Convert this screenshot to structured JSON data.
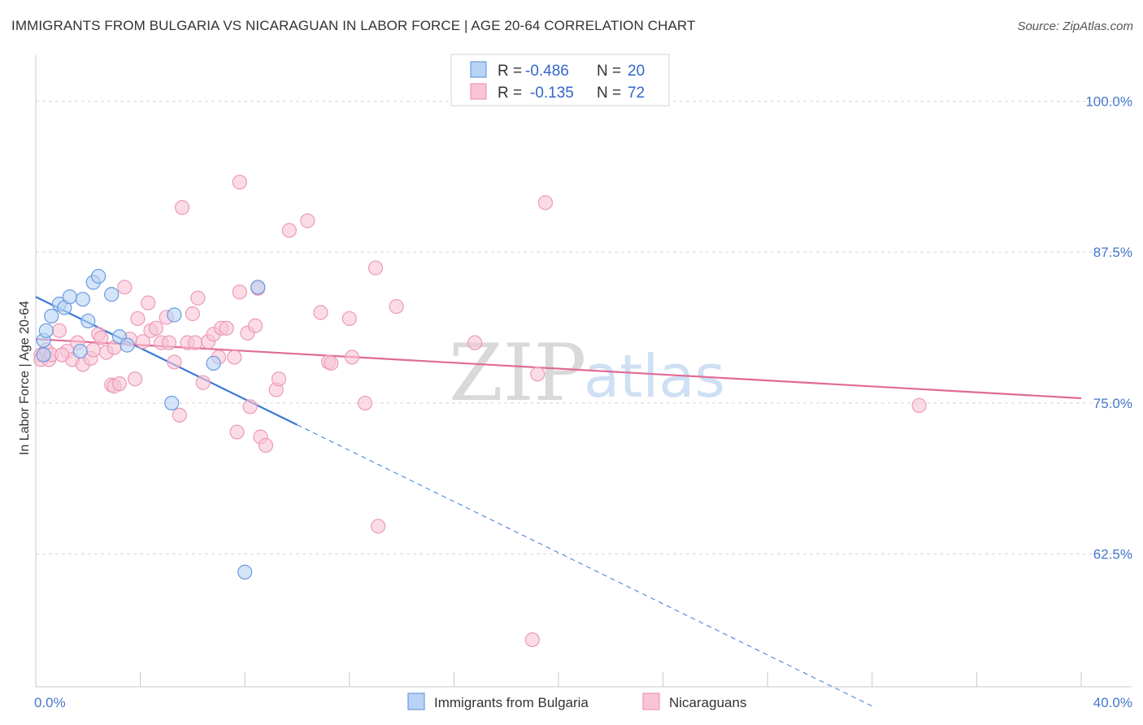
{
  "title": "IMMIGRANTS FROM BULGARIA VS NICARAGUAN IN LABOR FORCE | AGE 20-64 CORRELATION CHART",
  "source": "Source: ZipAtlas.com",
  "watermark": {
    "zip": "ZIP",
    "atlas": "atlas"
  },
  "colors": {
    "blue": "#3a78d8",
    "blue_fill": "#b8d3f5",
    "blue_stroke": "#6a9be0",
    "pink": "#e06a96",
    "pink_fill": "#f8c4d6",
    "pink_stroke": "#ec9ab7",
    "grid": "#d5d5d5",
    "axis_text": "#4477cc"
  },
  "legend_top": {
    "rows": [
      {
        "r_label": "R =",
        "r_value": "-0.486",
        "n_label": "N =",
        "n_value": "20"
      },
      {
        "r_label": "R =",
        "r_value": "-0.135",
        "n_label": "N =",
        "n_value": "72"
      }
    ]
  },
  "chart_data": {
    "type": "scatter",
    "title": "IMMIGRANTS FROM BULGARIA VS NICARAGUAN IN LABOR FORCE | AGE 20-64 CORRELATION CHART",
    "xlabel": "",
    "ylabel": "In Labor Force | Age 20-64",
    "xlim": [
      0,
      40
    ],
    "ylim": [
      51.5,
      103
    ],
    "x_tick_labels": [
      "0.0%",
      "40.0%"
    ],
    "y_ticks": [
      100.0,
      87.5,
      75.0,
      62.5
    ],
    "y_tick_labels": [
      "100.0%",
      "87.5%",
      "75.0%",
      "62.5%"
    ],
    "legend_bottom": [
      "Immigrants from Bulgaria",
      "Nicaraguans"
    ],
    "series": [
      {
        "name": "Immigrants from Bulgaria",
        "r": -0.486,
        "n": 20,
        "trend": {
          "x0": 0,
          "y0": 83.8,
          "x1": 10,
          "y1": 73.2,
          "dash_to_x": 32,
          "dash_to_y": 49.9
        },
        "points": [
          [
            0.3,
            80.2
          ],
          [
            0.3,
            79.0
          ],
          [
            0.4,
            81.0
          ],
          [
            0.6,
            82.2
          ],
          [
            0.9,
            83.2
          ],
          [
            1.1,
            82.9
          ],
          [
            1.3,
            83.8
          ],
          [
            1.8,
            83.6
          ],
          [
            2.0,
            81.8
          ],
          [
            1.7,
            79.3
          ],
          [
            2.2,
            85.0
          ],
          [
            2.4,
            85.5
          ],
          [
            2.9,
            84.0
          ],
          [
            3.2,
            80.5
          ],
          [
            3.5,
            79.8
          ],
          [
            5.2,
            75.0
          ],
          [
            5.3,
            82.3
          ],
          [
            6.8,
            78.3
          ],
          [
            8.5,
            84.6
          ],
          [
            8.0,
            61.0
          ]
        ]
      },
      {
        "name": "Nicaraguans",
        "r": -0.135,
        "n": 72,
        "trend": {
          "x0": 0,
          "y0": 80.3,
          "x1": 40,
          "y1": 75.4
        },
        "points": [
          [
            0.2,
            79.0
          ],
          [
            0.2,
            78.6
          ],
          [
            0.4,
            79.4
          ],
          [
            0.5,
            78.6
          ],
          [
            0.6,
            79.0
          ],
          [
            0.9,
            81.0
          ],
          [
            1.2,
            79.3
          ],
          [
            1.4,
            78.6
          ],
          [
            1.6,
            80.0
          ],
          [
            1.8,
            78.2
          ],
          [
            2.1,
            78.7
          ],
          [
            2.2,
            79.4
          ],
          [
            2.4,
            80.7
          ],
          [
            2.5,
            80.4
          ],
          [
            2.7,
            79.2
          ],
          [
            2.9,
            76.5
          ],
          [
            3.0,
            76.4
          ],
          [
            3.2,
            76.6
          ],
          [
            3.4,
            84.6
          ],
          [
            3.6,
            80.3
          ],
          [
            3.8,
            77.0
          ],
          [
            3.9,
            82.0
          ],
          [
            4.1,
            80.1
          ],
          [
            4.3,
            83.3
          ],
          [
            4.4,
            81.0
          ],
          [
            4.6,
            81.2
          ],
          [
            4.8,
            80.0
          ],
          [
            5.0,
            82.1
          ],
          [
            5.1,
            80.0
          ],
          [
            5.3,
            78.4
          ],
          [
            5.5,
            74.0
          ],
          [
            5.6,
            91.2
          ],
          [
            5.8,
            80.0
          ],
          [
            6.0,
            82.4
          ],
          [
            6.1,
            80.0
          ],
          [
            6.2,
            83.7
          ],
          [
            6.4,
            76.7
          ],
          [
            6.6,
            80.1
          ],
          [
            6.8,
            80.7
          ],
          [
            7.0,
            78.8
          ],
          [
            7.1,
            81.2
          ],
          [
            7.3,
            81.2
          ],
          [
            7.6,
            78.8
          ],
          [
            7.7,
            72.6
          ],
          [
            7.8,
            84.2
          ],
          [
            7.8,
            93.3
          ],
          [
            8.1,
            80.8
          ],
          [
            8.2,
            74.7
          ],
          [
            8.4,
            81.4
          ],
          [
            8.5,
            84.5
          ],
          [
            8.6,
            72.2
          ],
          [
            8.8,
            71.5
          ],
          [
            9.2,
            76.1
          ],
          [
            9.3,
            77.0
          ],
          [
            9.7,
            89.3
          ],
          [
            10.4,
            90.1
          ],
          [
            10.9,
            82.5
          ],
          [
            11.2,
            78.4
          ],
          [
            11.3,
            78.3
          ],
          [
            12.0,
            82.0
          ],
          [
            12.1,
            78.8
          ],
          [
            12.6,
            75.0
          ],
          [
            13.0,
            86.2
          ],
          [
            13.1,
            64.8
          ],
          [
            13.8,
            83.0
          ],
          [
            16.8,
            80.0
          ],
          [
            19.2,
            77.4
          ],
          [
            19.5,
            91.6
          ],
          [
            19.0,
            55.4
          ],
          [
            33.8,
            74.8
          ],
          [
            1.0,
            79.0
          ],
          [
            3.0,
            79.6
          ]
        ]
      }
    ]
  }
}
